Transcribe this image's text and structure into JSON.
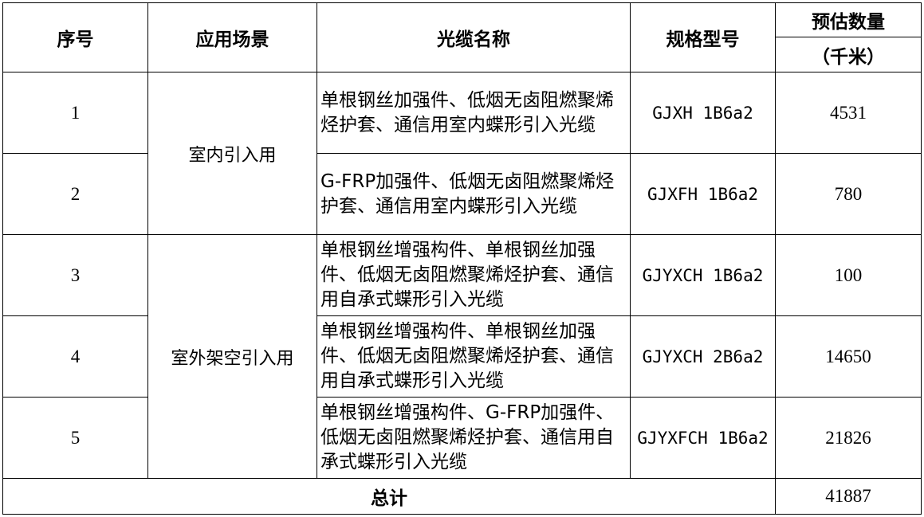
{
  "header": {
    "index": "序号",
    "scenario": "应用场景",
    "cable_name": "光缆名称",
    "model": "规格型号",
    "quantity": "预估数量",
    "unit": "（千米）"
  },
  "groups": [
    {
      "scenario": "室内引入用"
    },
    {
      "scenario": "室外架空引入用"
    }
  ],
  "rows": [
    {
      "index": "1",
      "name": "单根钢丝加强件、低烟无卤阻燃聚烯烃护套、通信用室内蝶形引入光缆",
      "model": "GJXH 1B6a2",
      "quantity": "4531"
    },
    {
      "index": "2",
      "name": "G-FRP加强件、低烟无卤阻燃聚烯烃护套、通信用室内蝶形引入光缆",
      "model": "GJXFH 1B6a2",
      "quantity": "780"
    },
    {
      "index": "3",
      "name": "单根钢丝增强构件、单根钢丝加强件、低烟无卤阻燃聚烯烃护套、通信用自承式蝶形引入光缆",
      "model": "GJYXCH 1B6a2",
      "quantity": "100"
    },
    {
      "index": "4",
      "name": "单根钢丝增强构件、单根钢丝加强件、低烟无卤阻燃聚烯烃护套、通信用自承式蝶形引入光缆",
      "model": "GJYXCH 2B6a2",
      "quantity": "14650"
    },
    {
      "index": "5",
      "name": "单根钢丝增强构件、G-FRP加强件、低烟无卤阻燃聚烯烃护套、通信用自承式蝶形引入光缆",
      "model": "GJYXFCH 1B6a2",
      "quantity": "21826"
    }
  ],
  "total": {
    "label": "总计",
    "quantity": "41887"
  }
}
